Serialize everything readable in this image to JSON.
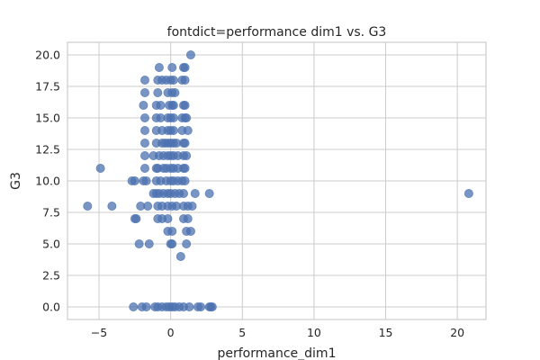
{
  "chart_data": {
    "type": "scatter",
    "title": "fontdict=performance dim1 vs. G3",
    "xlabel": "performance_dim1",
    "ylabel": "G3",
    "xlim": [
      -7.2,
      22.0
    ],
    "ylim": [
      -1.0,
      21.0
    ],
    "xticks": [
      -5,
      0,
      5,
      10,
      15,
      20
    ],
    "xtick_labels": [
      "−5",
      "0",
      "5",
      "10",
      "15",
      "20"
    ],
    "yticks": [
      0,
      2.5,
      5,
      7.5,
      10,
      12.5,
      15,
      17.5,
      20
    ],
    "ytick_labels": [
      "0.0",
      "2.5",
      "5.0",
      "7.5",
      "10.0",
      "12.5",
      "15.0",
      "17.5",
      "20.0"
    ],
    "grid": true,
    "point_color": "#4c72b0",
    "point_opacity": 0.75,
    "points": [
      {
        "x": 20.8,
        "y": 9
      },
      {
        "x": -5.8,
        "y": 8
      },
      {
        "x": -4.9,
        "y": 11
      },
      {
        "x": -4.1,
        "y": 8
      },
      {
        "x": 1.4,
        "y": 20
      },
      {
        "x": -0.8,
        "y": 19
      },
      {
        "x": 0.1,
        "y": 19
      },
      {
        "x": 0.9,
        "y": 19
      },
      {
        "x": 1.0,
        "y": 19
      },
      {
        "x": -1.8,
        "y": 18
      },
      {
        "x": -0.9,
        "y": 18
      },
      {
        "x": -0.6,
        "y": 18
      },
      {
        "x": -0.3,
        "y": 18
      },
      {
        "x": 0.0,
        "y": 18
      },
      {
        "x": 0.2,
        "y": 18
      },
      {
        "x": 0.8,
        "y": 18
      },
      {
        "x": 1.0,
        "y": 18
      },
      {
        "x": -1.8,
        "y": 17
      },
      {
        "x": -0.9,
        "y": 17
      },
      {
        "x": -0.2,
        "y": 17
      },
      {
        "x": 0.1,
        "y": 17
      },
      {
        "x": 0.3,
        "y": 17
      },
      {
        "x": -1.9,
        "y": 16
      },
      {
        "x": -1.0,
        "y": 16
      },
      {
        "x": -0.7,
        "y": 16
      },
      {
        "x": -0.1,
        "y": 16
      },
      {
        "x": 0.1,
        "y": 16
      },
      {
        "x": 0.2,
        "y": 16
      },
      {
        "x": 0.9,
        "y": 16
      },
      {
        "x": 1.0,
        "y": 16
      },
      {
        "x": -1.8,
        "y": 15
      },
      {
        "x": -1.0,
        "y": 15
      },
      {
        "x": -0.7,
        "y": 15
      },
      {
        "x": -0.2,
        "y": 15
      },
      {
        "x": 0.0,
        "y": 15
      },
      {
        "x": 0.2,
        "y": 15
      },
      {
        "x": 0.8,
        "y": 15
      },
      {
        "x": 1.0,
        "y": 15
      },
      {
        "x": 1.1,
        "y": 15
      },
      {
        "x": -1.8,
        "y": 14
      },
      {
        "x": -1.0,
        "y": 14
      },
      {
        "x": -0.6,
        "y": 14
      },
      {
        "x": -0.2,
        "y": 14
      },
      {
        "x": 0.0,
        "y": 14
      },
      {
        "x": 0.2,
        "y": 14
      },
      {
        "x": 0.8,
        "y": 14
      },
      {
        "x": 1.2,
        "y": 14
      },
      {
        "x": -1.8,
        "y": 13
      },
      {
        "x": -1.0,
        "y": 13
      },
      {
        "x": -0.6,
        "y": 13
      },
      {
        "x": -0.4,
        "y": 13
      },
      {
        "x": -0.2,
        "y": 13
      },
      {
        "x": 0.0,
        "y": 13
      },
      {
        "x": 0.2,
        "y": 13
      },
      {
        "x": 0.4,
        "y": 13
      },
      {
        "x": 0.9,
        "y": 13
      },
      {
        "x": 1.0,
        "y": 13
      },
      {
        "x": -1.8,
        "y": 12
      },
      {
        "x": -1.2,
        "y": 12
      },
      {
        "x": -0.8,
        "y": 12
      },
      {
        "x": -0.5,
        "y": 12
      },
      {
        "x": -0.2,
        "y": 12
      },
      {
        "x": 0.0,
        "y": 12
      },
      {
        "x": 0.2,
        "y": 12
      },
      {
        "x": 0.5,
        "y": 12
      },
      {
        "x": 0.9,
        "y": 12
      },
      {
        "x": 1.1,
        "y": 12
      },
      {
        "x": -1.8,
        "y": 11
      },
      {
        "x": -1.0,
        "y": 11
      },
      {
        "x": -0.9,
        "y": 11
      },
      {
        "x": -0.5,
        "y": 11
      },
      {
        "x": -0.3,
        "y": 11
      },
      {
        "x": 0.0,
        "y": 11
      },
      {
        "x": 0.2,
        "y": 11
      },
      {
        "x": 0.5,
        "y": 11
      },
      {
        "x": 0.9,
        "y": 11
      },
      {
        "x": 1.0,
        "y": 11
      },
      {
        "x": -2.7,
        "y": 10
      },
      {
        "x": -2.5,
        "y": 10
      },
      {
        "x": -1.9,
        "y": 10
      },
      {
        "x": -1.7,
        "y": 10
      },
      {
        "x": -1.0,
        "y": 10
      },
      {
        "x": -0.7,
        "y": 10
      },
      {
        "x": -0.3,
        "y": 10
      },
      {
        "x": 0.0,
        "y": 10
      },
      {
        "x": 0.2,
        "y": 10
      },
      {
        "x": 0.5,
        "y": 10
      },
      {
        "x": 0.8,
        "y": 10
      },
      {
        "x": 1.0,
        "y": 10
      },
      {
        "x": -1.2,
        "y": 9
      },
      {
        "x": -1.0,
        "y": 9
      },
      {
        "x": -0.8,
        "y": 9
      },
      {
        "x": -0.5,
        "y": 9
      },
      {
        "x": -0.2,
        "y": 9
      },
      {
        "x": 0.0,
        "y": 9
      },
      {
        "x": 0.3,
        "y": 9
      },
      {
        "x": 0.6,
        "y": 9
      },
      {
        "x": 0.9,
        "y": 9
      },
      {
        "x": 1.7,
        "y": 9
      },
      {
        "x": 2.7,
        "y": 9
      },
      {
        "x": -2.1,
        "y": 8
      },
      {
        "x": -1.6,
        "y": 8
      },
      {
        "x": -0.9,
        "y": 8
      },
      {
        "x": -0.6,
        "y": 8
      },
      {
        "x": -0.2,
        "y": 8
      },
      {
        "x": 0.1,
        "y": 8
      },
      {
        "x": 0.4,
        "y": 8
      },
      {
        "x": 0.9,
        "y": 8
      },
      {
        "x": 1.2,
        "y": 8
      },
      {
        "x": 1.5,
        "y": 8
      },
      {
        "x": -2.5,
        "y": 7
      },
      {
        "x": -2.4,
        "y": 7
      },
      {
        "x": -0.9,
        "y": 7
      },
      {
        "x": -0.6,
        "y": 7
      },
      {
        "x": -0.2,
        "y": 7
      },
      {
        "x": 0.9,
        "y": 7
      },
      {
        "x": 1.2,
        "y": 7
      },
      {
        "x": -0.2,
        "y": 6
      },
      {
        "x": 0.1,
        "y": 6
      },
      {
        "x": 1.1,
        "y": 6
      },
      {
        "x": 1.4,
        "y": 6
      },
      {
        "x": -2.2,
        "y": 5
      },
      {
        "x": -1.5,
        "y": 5
      },
      {
        "x": 0.0,
        "y": 5
      },
      {
        "x": 0.1,
        "y": 5
      },
      {
        "x": 1.1,
        "y": 5
      },
      {
        "x": 0.7,
        "y": 4
      },
      {
        "x": -2.6,
        "y": 0
      },
      {
        "x": -2.0,
        "y": 0
      },
      {
        "x": -1.7,
        "y": 0
      },
      {
        "x": -1.1,
        "y": 0
      },
      {
        "x": -0.9,
        "y": 0
      },
      {
        "x": -0.6,
        "y": 0
      },
      {
        "x": -0.3,
        "y": 0
      },
      {
        "x": -0.1,
        "y": 0
      },
      {
        "x": 0.1,
        "y": 0
      },
      {
        "x": 0.3,
        "y": 0
      },
      {
        "x": 0.6,
        "y": 0
      },
      {
        "x": 0.9,
        "y": 0
      },
      {
        "x": 1.3,
        "y": 0
      },
      {
        "x": 1.9,
        "y": 0
      },
      {
        "x": 2.1,
        "y": 0
      },
      {
        "x": 2.7,
        "y": 0
      },
      {
        "x": 2.8,
        "y": 0
      },
      {
        "x": 2.9,
        "y": 0
      }
    ]
  }
}
